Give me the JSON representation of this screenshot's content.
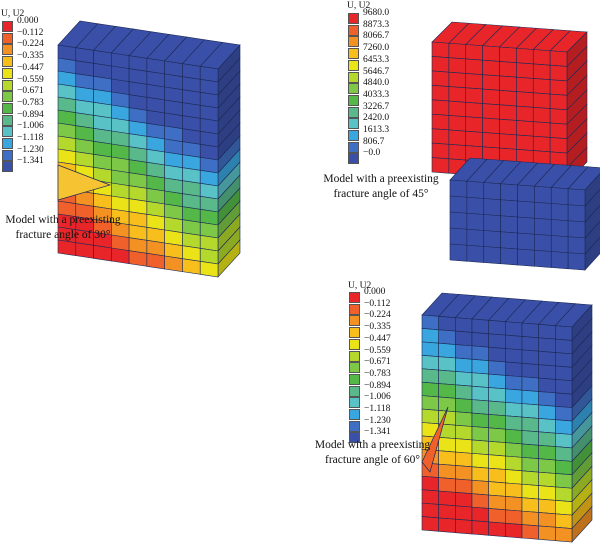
{
  "colors": {
    "red": "#e8262a",
    "orange_red": "#f0602a",
    "orange": "#f39122",
    "yellow_orange": "#f7be1c",
    "yellow": "#e9e318",
    "yellow_green": "#b4d92c",
    "light_green": "#7dc847",
    "green": "#54b848",
    "sea_green": "#59b98a",
    "cyan": "#58c2c7",
    "sky": "#3aa6df",
    "blue": "#3f6fc4",
    "dark_blue": "#3a4fa8"
  },
  "legend_u2": {
    "title": "U, U2",
    "values": [
      "0.000",
      "−0.112",
      "−0.224",
      "−0.335",
      "−0.447",
      "−0.559",
      "−0.671",
      "−0.783",
      "−0.894",
      "−1.006",
      "−1.118",
      "−1.230",
      "−1.341"
    ]
  },
  "legend_45": {
    "title": "U, U2",
    "values": [
      "9680.0",
      "8873.3",
      "8066.7",
      "7260.0",
      "6453.3",
      "5646.7",
      "4840.0",
      "4033.3",
      "3226.7",
      "2420.0",
      "1613.3",
      "806.7",
      "−0.0"
    ]
  },
  "legend_60": {
    "title": "U, U2",
    "values": [
      "0.000",
      "−0.112",
      "−0.224",
      "−0.335",
      "−0.447",
      "−0.559",
      "−0.671",
      "−0.783",
      "−0.894",
      "−1.006",
      "−1.118",
      "−1.230",
      "−1.341"
    ]
  },
  "captions": {
    "model_30": [
      "Model with a preexisting",
      "fracture angle of 30°"
    ],
    "model_45": [
      "Model with a preexisting",
      "fracture angle of 45°"
    ],
    "model_60": [
      "Model with a preexisting",
      "fracture angle of 60°"
    ]
  }
}
